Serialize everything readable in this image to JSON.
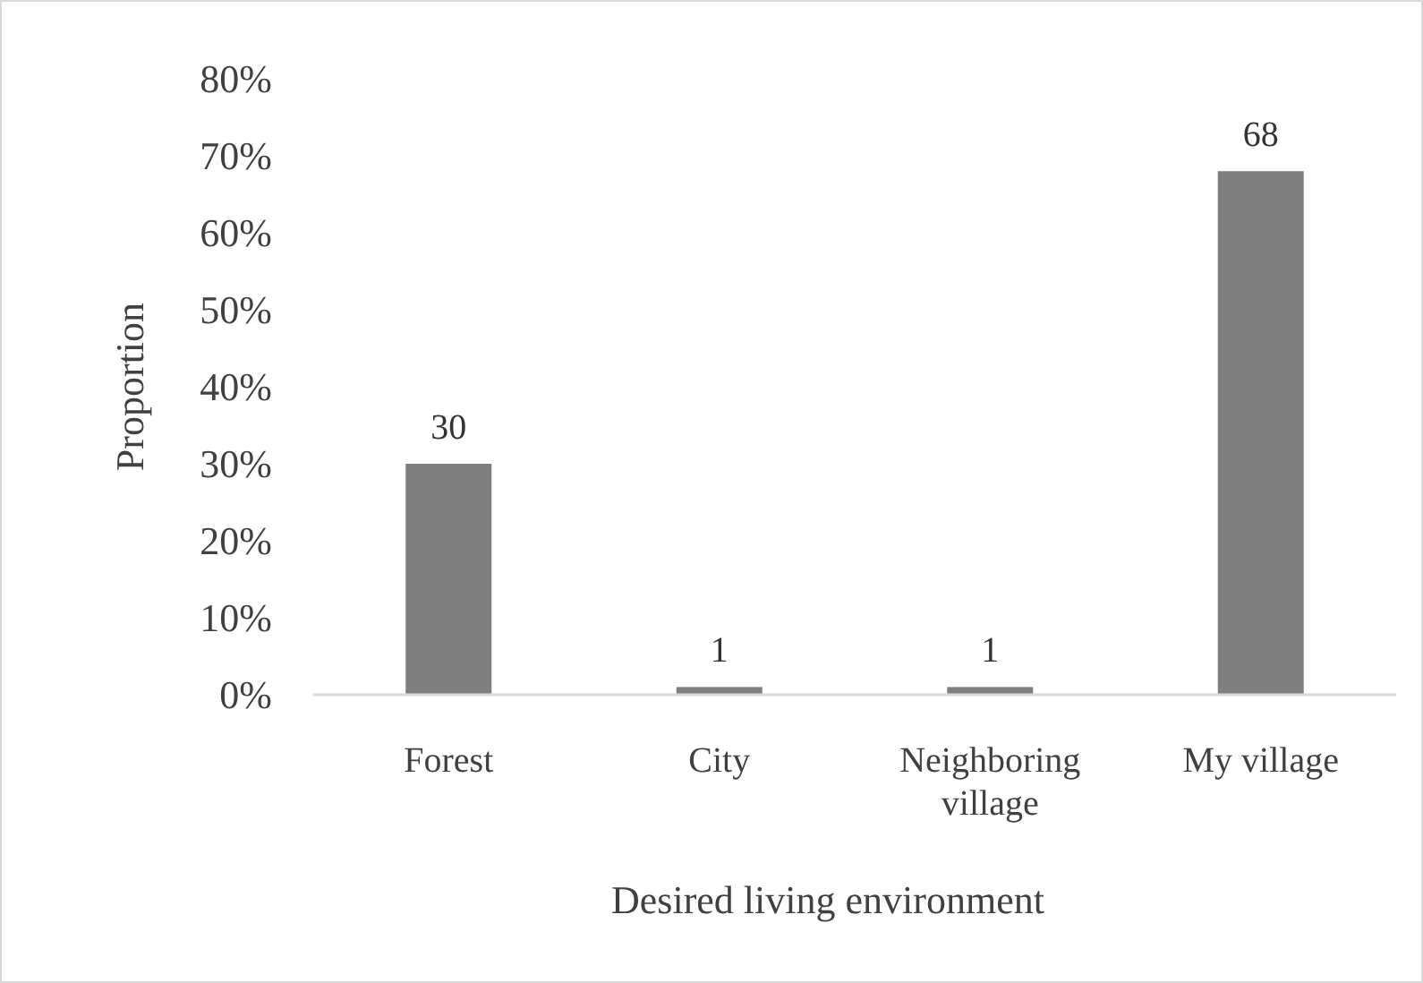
{
  "chart_data": {
    "type": "bar",
    "xlabel": "Desired living environment",
    "ylabel": "Proportion",
    "categories": [
      "Forest",
      "City",
      "Neighboring village",
      "My village"
    ],
    "values": [
      30,
      1,
      1,
      68
    ],
    "color": "#7f7f7f",
    "data_labels": true,
    "ylim": [
      0,
      80
    ],
    "yticks": [
      {
        "value": 0,
        "label": "0%"
      },
      {
        "value": 10,
        "label": "10%"
      },
      {
        "value": 20,
        "label": "20%"
      },
      {
        "value": 30,
        "label": "30%"
      },
      {
        "value": 40,
        "label": "40%"
      },
      {
        "value": 50,
        "label": "50%"
      },
      {
        "value": 60,
        "label": "60%"
      },
      {
        "value": 70,
        "label": "70%"
      },
      {
        "value": 80,
        "label": "80%"
      }
    ],
    "grid": false
  }
}
